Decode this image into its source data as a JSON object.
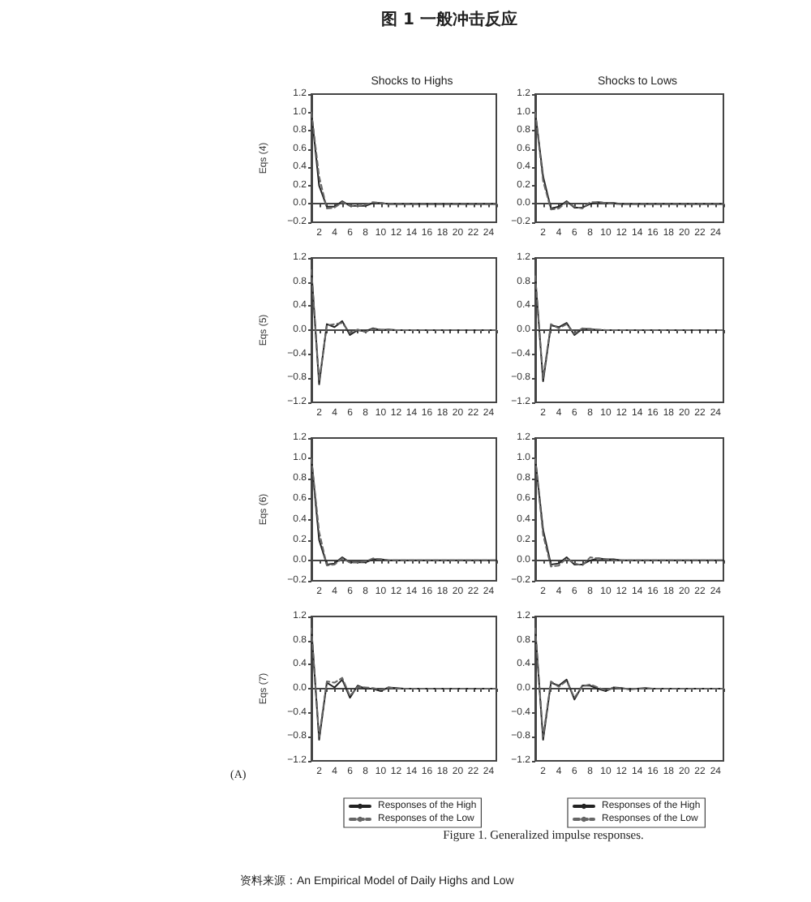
{
  "chart_data": [
    {
      "type": "line",
      "title": "Shocks to Highs",
      "ylabel": "Eqs (4)",
      "annotations": [
        "图 1 一般冲击反应",
        "Figure 1. Generalized impulse responses.",
        "资料来源：An Empirical Model of Daily Highs and Low"
      ],
      "x": [
        1,
        2,
        3,
        4,
        5,
        6,
        7,
        8,
        9,
        10,
        11,
        12,
        13,
        14,
        15,
        16,
        17,
        18,
        19,
        20,
        21,
        22,
        23,
        24,
        25
      ],
      "xlim": [
        1,
        25
      ],
      "xticks": [
        {
          "value": 1,
          "label": null
        },
        2,
        {
          "value": 3,
          "label": null
        },
        4,
        {
          "value": 5,
          "label": null
        },
        6,
        {
          "value": 7,
          "label": null
        },
        8,
        {
          "value": 9,
          "label": null
        },
        10,
        {
          "value": 11,
          "label": null
        },
        12,
        {
          "value": 13,
          "label": null
        },
        14,
        {
          "value": 15,
          "label": null
        },
        16,
        {
          "value": 17,
          "label": null
        },
        18,
        {
          "value": 19,
          "label": null
        },
        20,
        {
          "value": 21,
          "label": null
        },
        22,
        {
          "value": 23,
          "label": null
        },
        24,
        {
          "value": 25,
          "label": null
        }
      ],
      "ylim": [
        -0.2,
        1.2
      ],
      "yticks": [
        {
          "value": -0.2,
          "label": "−0.2"
        },
        {
          "value": 0,
          "label": "0.0"
        },
        0.2,
        0.4,
        0.6,
        0.8,
        {
          "value": 1,
          "label": "1.0"
        },
        1.2
      ],
      "legend": false,
      "marker": "none",
      "series": [
        {
          "color": "#222222",
          "line_style": "solid",
          "values": [
            1.0,
            0.2,
            -0.03,
            -0.03,
            0.03,
            -0.02,
            -0.02,
            -0.02,
            0.01,
            0.01,
            0,
            0,
            0,
            0,
            0,
            0,
            0,
            0,
            0,
            0,
            0,
            0,
            0,
            0,
            0
          ]
        },
        {
          "color": "#666666",
          "line_style": "dashed",
          "values": [
            1.0,
            0.3,
            -0.05,
            -0.04,
            0.02,
            -0.02,
            -0.02,
            -0.01,
            0.02,
            0.01,
            0,
            0,
            0,
            0,
            0,
            0,
            0,
            0,
            0,
            0,
            0,
            0,
            0,
            0,
            0
          ]
        }
      ]
    },
    {
      "type": "line",
      "title": "Shocks to Lows",
      "x": [
        1,
        2,
        3,
        4,
        5,
        6,
        7,
        8,
        9,
        10,
        11,
        12,
        13,
        14,
        15,
        16,
        17,
        18,
        19,
        20,
        21,
        22,
        23,
        24,
        25
      ],
      "xlim": [
        1,
        25
      ],
      "xticks": [
        {
          "value": 1,
          "label": null
        },
        2,
        {
          "value": 3,
          "label": null
        },
        4,
        {
          "value": 5,
          "label": null
        },
        6,
        {
          "value": 7,
          "label": null
        },
        8,
        {
          "value": 9,
          "label": null
        },
        10,
        {
          "value": 11,
          "label": null
        },
        12,
        {
          "value": 13,
          "label": null
        },
        14,
        {
          "value": 15,
          "label": null
        },
        16,
        {
          "value": 17,
          "label": null
        },
        18,
        {
          "value": 19,
          "label": null
        },
        20,
        {
          "value": 21,
          "label": null
        },
        22,
        {
          "value": 23,
          "label": null
        },
        24,
        {
          "value": 25,
          "label": null
        }
      ],
      "ylim": [
        -0.2,
        1.2
      ],
      "yticks": [
        {
          "value": -0.2,
          "label": "−0.2"
        },
        {
          "value": 0,
          "label": "0.0"
        },
        0.2,
        0.4,
        0.6,
        0.8,
        {
          "value": 1,
          "label": "1.0"
        },
        1.2
      ],
      "legend": false,
      "marker": "none",
      "series": [
        {
          "color": "#222222",
          "line_style": "solid",
          "values": [
            1.0,
            0.3,
            -0.05,
            -0.03,
            0.03,
            -0.04,
            -0.04,
            0.0,
            0.02,
            0.01,
            0.01,
            0,
            0,
            0,
            0,
            0,
            0,
            0,
            0,
            0,
            0,
            0,
            0,
            0,
            0
          ]
        },
        {
          "color": "#666666",
          "line_style": "dashed",
          "values": [
            1.0,
            0.25,
            -0.06,
            -0.05,
            0.02,
            -0.03,
            -0.05,
            0.02,
            0.02,
            0.01,
            0,
            0,
            0,
            0,
            0,
            0,
            0,
            0,
            0,
            0,
            0,
            0,
            0,
            0,
            0
          ]
        }
      ]
    },
    {
      "type": "line",
      "ylabel": "Eqs (5)",
      "x": [
        1,
        2,
        3,
        4,
        5,
        6,
        7,
        8,
        9,
        10,
        11,
        12,
        13,
        14,
        15,
        16,
        17,
        18,
        19,
        20,
        21,
        22,
        23,
        24,
        25
      ],
      "xlim": [
        1,
        25
      ],
      "xticks": [
        {
          "value": 1,
          "label": null
        },
        2,
        {
          "value": 3,
          "label": null
        },
        4,
        {
          "value": 5,
          "label": null
        },
        6,
        {
          "value": 7,
          "label": null
        },
        8,
        {
          "value": 9,
          "label": null
        },
        10,
        {
          "value": 11,
          "label": null
        },
        12,
        {
          "value": 13,
          "label": null
        },
        14,
        {
          "value": 15,
          "label": null
        },
        16,
        {
          "value": 17,
          "label": null
        },
        18,
        {
          "value": 19,
          "label": null
        },
        20,
        {
          "value": 21,
          "label": null
        },
        22,
        {
          "value": 23,
          "label": null
        },
        24,
        {
          "value": 25,
          "label": null
        }
      ],
      "ylim": [
        -1.2,
        1.2
      ],
      "yticks": [
        {
          "value": -1.2,
          "label": "−1.2"
        },
        {
          "value": -0.8,
          "label": "−0.8"
        },
        {
          "value": -0.4,
          "label": "−0.4"
        },
        {
          "value": 0,
          "label": "0.0"
        },
        0.4,
        0.8,
        1.2
      ],
      "legend": false,
      "marker": "none",
      "series": [
        {
          "color": "#222222",
          "line_style": "solid",
          "values": [
            1.0,
            -0.9,
            0.1,
            0.05,
            0.15,
            -0.08,
            0.0,
            -0.02,
            0.03,
            0.0,
            0.01,
            0,
            0,
            0,
            0,
            0,
            0,
            0,
            0,
            0,
            0,
            0,
            0,
            0,
            0
          ]
        },
        {
          "color": "#666666",
          "line_style": "dashed",
          "values": [
            1.0,
            -0.85,
            0.08,
            0.1,
            0.12,
            -0.05,
            0.01,
            -0.03,
            0.02,
            0.01,
            0,
            0,
            0,
            0,
            0,
            0,
            0,
            0,
            0,
            0,
            0,
            0,
            0,
            0,
            0
          ]
        }
      ]
    },
    {
      "type": "line",
      "x": [
        1,
        2,
        3,
        4,
        5,
        6,
        7,
        8,
        9,
        10,
        11,
        12,
        13,
        14,
        15,
        16,
        17,
        18,
        19,
        20,
        21,
        22,
        23,
        24,
        25
      ],
      "xlim": [
        1,
        25
      ],
      "xticks": [
        {
          "value": 1,
          "label": null
        },
        2,
        {
          "value": 3,
          "label": null
        },
        4,
        {
          "value": 5,
          "label": null
        },
        6,
        {
          "value": 7,
          "label": null
        },
        8,
        {
          "value": 9,
          "label": null
        },
        10,
        {
          "value": 11,
          "label": null
        },
        12,
        {
          "value": 13,
          "label": null
        },
        14,
        {
          "value": 15,
          "label": null
        },
        16,
        {
          "value": 17,
          "label": null
        },
        18,
        {
          "value": 19,
          "label": null
        },
        20,
        {
          "value": 21,
          "label": null
        },
        22,
        {
          "value": 23,
          "label": null
        },
        24,
        {
          "value": 25,
          "label": null
        }
      ],
      "ylim": [
        -1.2,
        1.2
      ],
      "yticks": [
        {
          "value": -1.2,
          "label": "−1.2"
        },
        {
          "value": -0.8,
          "label": "−0.8"
        },
        {
          "value": -0.4,
          "label": "−0.4"
        },
        {
          "value": 0,
          "label": "0.0"
        },
        0.4,
        0.8,
        1.2
      ],
      "legend": false,
      "marker": "none",
      "series": [
        {
          "color": "#222222",
          "line_style": "solid",
          "values": [
            0.9,
            -0.85,
            0.08,
            0.05,
            0.12,
            -0.08,
            0.02,
            0.02,
            0.0,
            0.0,
            0,
            0,
            0,
            0,
            0,
            0,
            0,
            0,
            0,
            0,
            0,
            0,
            0,
            0,
            0
          ]
        },
        {
          "color": "#666666",
          "line_style": "dashed",
          "values": [
            0.9,
            -0.8,
            0.1,
            0.03,
            0.1,
            -0.06,
            0.03,
            0.01,
            0.01,
            0,
            0,
            0,
            0,
            0,
            0,
            0,
            0,
            0,
            0,
            0,
            0,
            0,
            0,
            0,
            0
          ]
        }
      ]
    },
    {
      "type": "line",
      "ylabel": "Eqs (6)",
      "x": [
        1,
        2,
        3,
        4,
        5,
        6,
        7,
        8,
        9,
        10,
        11,
        12,
        13,
        14,
        15,
        16,
        17,
        18,
        19,
        20,
        21,
        22,
        23,
        24,
        25
      ],
      "xlim": [
        1,
        25
      ],
      "xticks": [
        {
          "value": 1,
          "label": null
        },
        2,
        {
          "value": 3,
          "label": null
        },
        4,
        {
          "value": 5,
          "label": null
        },
        6,
        {
          "value": 7,
          "label": null
        },
        8,
        {
          "value": 9,
          "label": null
        },
        10,
        {
          "value": 11,
          "label": null
        },
        12,
        {
          "value": 13,
          "label": null
        },
        14,
        {
          "value": 15,
          "label": null
        },
        16,
        {
          "value": 17,
          "label": null
        },
        18,
        {
          "value": 19,
          "label": null
        },
        20,
        {
          "value": 21,
          "label": null
        },
        22,
        {
          "value": 23,
          "label": null
        },
        24,
        {
          "value": 25,
          "label": null
        }
      ],
      "ylim": [
        -0.2,
        1.2
      ],
      "yticks": [
        {
          "value": -0.2,
          "label": "−0.2"
        },
        {
          "value": 0,
          "label": "0.0"
        },
        0.2,
        0.4,
        0.6,
        0.8,
        {
          "value": 1,
          "label": "1.0"
        },
        1.2
      ],
      "legend": false,
      "marker": "none",
      "series": [
        {
          "color": "#222222",
          "line_style": "solid",
          "values": [
            1.0,
            0.2,
            -0.04,
            -0.03,
            0.03,
            -0.02,
            -0.02,
            -0.02,
            0.01,
            0.01,
            0,
            0,
            0,
            0,
            0,
            0,
            0,
            0,
            0,
            0,
            0,
            0,
            0,
            0,
            0
          ]
        },
        {
          "color": "#666666",
          "line_style": "dashed",
          "values": [
            1.0,
            0.28,
            -0.05,
            -0.04,
            0.02,
            -0.02,
            -0.02,
            -0.01,
            0.02,
            0.01,
            0,
            0,
            0,
            0,
            0,
            0,
            0,
            0,
            0,
            0,
            0,
            0,
            0,
            0,
            0
          ]
        }
      ]
    },
    {
      "type": "line",
      "x": [
        1,
        2,
        3,
        4,
        5,
        6,
        7,
        8,
        9,
        10,
        11,
        12,
        13,
        14,
        15,
        16,
        17,
        18,
        19,
        20,
        21,
        22,
        23,
        24,
        25
      ],
      "xlim": [
        1,
        25
      ],
      "xticks": [
        {
          "value": 1,
          "label": null
        },
        2,
        {
          "value": 3,
          "label": null
        },
        4,
        {
          "value": 5,
          "label": null
        },
        6,
        {
          "value": 7,
          "label": null
        },
        8,
        {
          "value": 9,
          "label": null
        },
        10,
        {
          "value": 11,
          "label": null
        },
        12,
        {
          "value": 13,
          "label": null
        },
        14,
        {
          "value": 15,
          "label": null
        },
        16,
        {
          "value": 17,
          "label": null
        },
        18,
        {
          "value": 19,
          "label": null
        },
        20,
        {
          "value": 21,
          "label": null
        },
        22,
        {
          "value": 23,
          "label": null
        },
        24,
        {
          "value": 25,
          "label": null
        }
      ],
      "ylim": [
        -0.2,
        1.2
      ],
      "yticks": [
        {
          "value": -0.2,
          "label": "−0.2"
        },
        {
          "value": 0,
          "label": "0.0"
        },
        0.2,
        0.4,
        0.6,
        0.8,
        {
          "value": 1,
          "label": "1.0"
        },
        1.2
      ],
      "legend": false,
      "marker": "none",
      "series": [
        {
          "color": "#222222",
          "line_style": "solid",
          "values": [
            1.0,
            0.3,
            -0.04,
            -0.03,
            0.03,
            -0.04,
            -0.04,
            0.0,
            0.02,
            0.01,
            0.01,
            0,
            0,
            0,
            0,
            0,
            0,
            0,
            0,
            0,
            0,
            0,
            0,
            0,
            0
          ]
        },
        {
          "color": "#666666",
          "line_style": "dashed",
          "values": [
            1.0,
            0.25,
            -0.06,
            -0.05,
            0.02,
            -0.03,
            -0.05,
            0.03,
            0.02,
            0.01,
            0,
            0,
            0,
            0,
            0,
            0,
            0,
            0,
            0,
            0,
            0,
            0,
            0,
            0,
            0
          ]
        }
      ]
    },
    {
      "type": "line",
      "ylabel": "Eqs (7)",
      "annotations": [
        "(A)"
      ],
      "x": [
        1,
        2,
        3,
        4,
        5,
        6,
        7,
        8,
        9,
        10,
        11,
        12,
        13,
        14,
        15,
        16,
        17,
        18,
        19,
        20,
        21,
        22,
        23,
        24,
        25
      ],
      "xlim": [
        1,
        25
      ],
      "xticks": [
        {
          "value": 1,
          "label": null
        },
        2,
        {
          "value": 3,
          "label": null
        },
        4,
        {
          "value": 5,
          "label": null
        },
        6,
        {
          "value": 7,
          "label": null
        },
        8,
        {
          "value": 9,
          "label": null
        },
        10,
        {
          "value": 11,
          "label": null
        },
        12,
        {
          "value": 13,
          "label": null
        },
        14,
        {
          "value": 15,
          "label": null
        },
        16,
        {
          "value": 17,
          "label": null
        },
        18,
        {
          "value": 19,
          "label": null
        },
        20,
        {
          "value": 21,
          "label": null
        },
        22,
        {
          "value": 23,
          "label": null
        },
        24,
        {
          "value": 25,
          "label": null
        }
      ],
      "ylim": [
        -1.2,
        1.2
      ],
      "yticks": [
        {
          "value": -1.2,
          "label": "−1.2"
        },
        {
          "value": -0.8,
          "label": "−0.8"
        },
        {
          "value": -0.4,
          "label": "−0.4"
        },
        {
          "value": 0,
          "label": "0.0"
        },
        0.4,
        0.8,
        1.2
      ],
      "legend": "bottom",
      "marker": "none",
      "series": [
        {
          "name": "Responses of the High",
          "color": "#222222",
          "line_style": "solid",
          "values": [
            1.0,
            -0.85,
            0.1,
            0.02,
            0.15,
            -0.15,
            0.05,
            0.0,
            0.0,
            -0.04,
            0.02,
            0.01,
            0,
            0,
            0,
            0,
            0,
            0,
            0,
            0,
            0,
            0,
            0,
            0,
            0
          ]
        },
        {
          "name": "Responses of the Low",
          "color": "#666666",
          "line_style": "dashed",
          "values": [
            1.0,
            -0.8,
            0.12,
            0.1,
            0.18,
            -0.12,
            0.03,
            0.02,
            0.01,
            -0.02,
            0.02,
            0,
            0,
            0,
            0,
            0,
            0,
            0,
            0,
            0,
            0,
            0,
            0,
            0,
            0
          ]
        }
      ]
    },
    {
      "type": "line",
      "x": [
        1,
        2,
        3,
        4,
        5,
        6,
        7,
        8,
        9,
        10,
        11,
        12,
        13,
        14,
        15,
        16,
        17,
        18,
        19,
        20,
        21,
        22,
        23,
        24,
        25
      ],
      "xlim": [
        1,
        25
      ],
      "xticks": [
        {
          "value": 1,
          "label": null
        },
        2,
        {
          "value": 3,
          "label": null
        },
        4,
        {
          "value": 5,
          "label": null
        },
        6,
        {
          "value": 7,
          "label": null
        },
        8,
        {
          "value": 9,
          "label": null
        },
        10,
        {
          "value": 11,
          "label": null
        },
        12,
        {
          "value": 13,
          "label": null
        },
        14,
        {
          "value": 15,
          "label": null
        },
        16,
        {
          "value": 17,
          "label": null
        },
        18,
        {
          "value": 19,
          "label": null
        },
        20,
        {
          "value": 21,
          "label": null
        },
        22,
        {
          "value": 23,
          "label": null
        },
        24,
        {
          "value": 25,
          "label": null
        }
      ],
      "ylim": [
        -1.2,
        1.2
      ],
      "yticks": [
        {
          "value": -1.2,
          "label": "−1.2"
        },
        {
          "value": -0.8,
          "label": "−0.8"
        },
        {
          "value": -0.4,
          "label": "−0.4"
        },
        {
          "value": 0,
          "label": "0.0"
        },
        0.4,
        0.8,
        1.2
      ],
      "legend": "bottom",
      "marker": "none",
      "series": [
        {
          "name": "Responses of the High",
          "color": "#222222",
          "line_style": "solid",
          "values": [
            1.0,
            -0.85,
            0.1,
            0.05,
            0.15,
            -0.18,
            0.05,
            0.05,
            0.0,
            -0.04,
            0.02,
            0.01,
            -0.01,
            0.0,
            0.01,
            0,
            0,
            0,
            0,
            0,
            0,
            0,
            0,
            0,
            0
          ]
        },
        {
          "name": "Responses of the Low",
          "color": "#666666",
          "line_style": "dashed",
          "values": [
            1.0,
            -0.8,
            0.12,
            0.03,
            0.13,
            -0.15,
            0.04,
            0.07,
            0.02,
            -0.03,
            0.02,
            0.0,
            0,
            0,
            0,
            0,
            0,
            0,
            0,
            0,
            0,
            0,
            0,
            0,
            0
          ]
        }
      ]
    }
  ]
}
